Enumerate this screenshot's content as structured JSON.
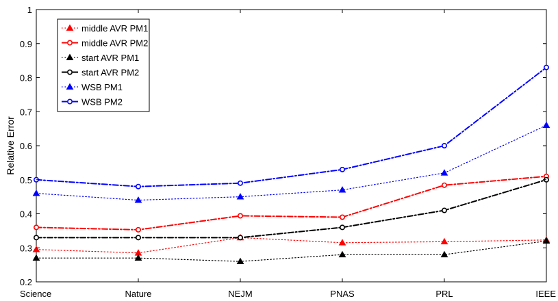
{
  "chart_data": {
    "type": "line",
    "title": "",
    "xlabel": "",
    "ylabel": "Relative Error",
    "ylim": [
      0.2,
      1
    ],
    "yticks": [
      "0.2",
      "0.3",
      "0.4",
      "0.5",
      "0.6",
      "0.7",
      "0.8",
      "0.9",
      "1"
    ],
    "categories": [
      "Science",
      "Nature",
      "NEJM",
      "PNAS",
      "PRL",
      "IEEE"
    ],
    "grid": false,
    "legend_position": "top-left",
    "series": [
      {
        "name": "middle AVR PM1",
        "color": "#ff0000",
        "line": "dotted",
        "marker": "triangle",
        "values": [
          0.295,
          0.285,
          0.33,
          0.315,
          0.318,
          0.323
        ]
      },
      {
        "name": "middle AVR PM2",
        "color": "#ff0000",
        "line": "dashdot",
        "marker": "circle",
        "values": [
          0.36,
          0.353,
          0.394,
          0.39,
          0.484,
          0.51
        ]
      },
      {
        "name": "start AVR PM1",
        "color": "#000000",
        "line": "dotted",
        "marker": "triangle",
        "values": [
          0.27,
          0.27,
          0.26,
          0.28,
          0.28,
          0.32
        ]
      },
      {
        "name": "start AVR PM2",
        "color": "#000000",
        "line": "dashdot",
        "marker": "circle",
        "values": [
          0.33,
          0.33,
          0.33,
          0.36,
          0.41,
          0.5
        ]
      },
      {
        "name": "WSB PM1",
        "color": "#0000ff",
        "line": "dotted",
        "marker": "triangle",
        "values": [
          0.46,
          0.44,
          0.45,
          0.47,
          0.52,
          0.66
        ]
      },
      {
        "name": "WSB PM2",
        "color": "#0000ff",
        "line": "dashdot",
        "marker": "circle",
        "values": [
          0.5,
          0.48,
          0.49,
          0.53,
          0.6,
          0.83
        ]
      }
    ]
  }
}
